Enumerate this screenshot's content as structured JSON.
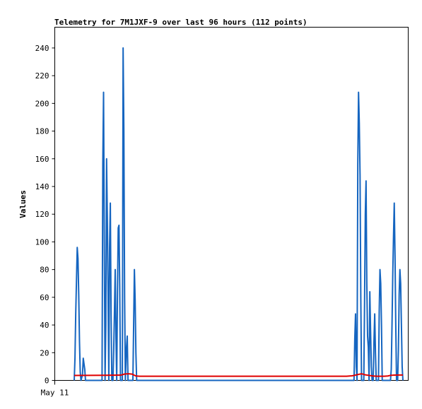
{
  "chart_data": {
    "type": "line",
    "title": "Telemetry for 7M1JXF-9 over last 96 hours (112 points)",
    "xlabel": "",
    "ylabel": "Values",
    "x_tick_labels": [
      {
        "x": 0,
        "label": "May 11"
      }
    ],
    "xlim": [
      0,
      96
    ],
    "ylim": [
      0,
      255
    ],
    "y_ticks": [
      0,
      20,
      40,
      60,
      80,
      100,
      120,
      140,
      160,
      180,
      200,
      220,
      240
    ],
    "grid": false,
    "legend": "none",
    "series": [
      {
        "color": "#1565c0",
        "points": [
          [
            9.6,
            0
          ],
          [
            9.8,
            16
          ],
          [
            10.0,
            48
          ],
          [
            10.2,
            72
          ],
          [
            10.4,
            96
          ],
          [
            10.6,
            88
          ],
          [
            10.8,
            62
          ],
          [
            11.0,
            28
          ],
          [
            11.2,
            6
          ],
          [
            11.4,
            0
          ],
          [
            11.8,
            4
          ],
          [
            12.0,
            16
          ],
          [
            12.2,
            12
          ],
          [
            12.4,
            8
          ],
          [
            12.6,
            0
          ],
          [
            17.0,
            0
          ],
          [
            17.2,
            156
          ],
          [
            17.4,
            208
          ],
          [
            17.6,
            100
          ],
          [
            17.8,
            0
          ],
          [
            18.0,
            40
          ],
          [
            18.2,
            160
          ],
          [
            18.4,
            118
          ],
          [
            18.6,
            64
          ],
          [
            18.8,
            0
          ],
          [
            19.0,
            96
          ],
          [
            19.2,
            128
          ],
          [
            19.4,
            48
          ],
          [
            19.6,
            0
          ],
          [
            19.9,
            0
          ],
          [
            20.1,
            22
          ],
          [
            20.3,
            50
          ],
          [
            20.5,
            80
          ],
          [
            20.7,
            30
          ],
          [
            20.9,
            0
          ],
          [
            21.1,
            64
          ],
          [
            21.3,
            110
          ],
          [
            21.5,
            112
          ],
          [
            21.7,
            68
          ],
          [
            21.9,
            0
          ],
          [
            22.4,
            0
          ],
          [
            22.6,
            240
          ],
          [
            22.8,
            180
          ],
          [
            23.0,
            60
          ],
          [
            23.2,
            0
          ],
          [
            23.5,
            24
          ],
          [
            23.7,
            32
          ],
          [
            23.9,
            0
          ],
          [
            25.2,
            0
          ],
          [
            25.4,
            40
          ],
          [
            25.6,
            80
          ],
          [
            25.8,
            58
          ],
          [
            26.0,
            20
          ],
          [
            26.2,
            0
          ],
          [
            84.0,
            0
          ],
          [
            84.2,
            30
          ],
          [
            84.4,
            48
          ],
          [
            84.6,
            10
          ],
          [
            84.8,
            0
          ],
          [
            85.0,
            156
          ],
          [
            85.2,
            208
          ],
          [
            85.4,
            186
          ],
          [
            85.6,
            148
          ],
          [
            85.8,
            60
          ],
          [
            86.0,
            0
          ],
          [
            86.6,
            0
          ],
          [
            86.8,
            56
          ],
          [
            87.0,
            120
          ],
          [
            87.2,
            144
          ],
          [
            87.4,
            70
          ],
          [
            87.6,
            32
          ],
          [
            87.8,
            24
          ],
          [
            88.0,
            0
          ],
          [
            88.2,
            64
          ],
          [
            88.4,
            36
          ],
          [
            88.6,
            10
          ],
          [
            88.8,
            0
          ],
          [
            89.1,
            0
          ],
          [
            89.3,
            28
          ],
          [
            89.5,
            48
          ],
          [
            89.7,
            20
          ],
          [
            89.9,
            0
          ],
          [
            90.5,
            0
          ],
          [
            90.7,
            50
          ],
          [
            90.9,
            80
          ],
          [
            91.1,
            70
          ],
          [
            91.3,
            40
          ],
          [
            91.5,
            0
          ],
          [
            93.7,
            0
          ],
          [
            93.9,
            8
          ],
          [
            94.1,
            40
          ],
          [
            94.3,
            76
          ],
          [
            94.5,
            104
          ],
          [
            94.7,
            128
          ],
          [
            94.9,
            90
          ],
          [
            95.1,
            40
          ],
          [
            95.3,
            0
          ],
          [
            95.6,
            0
          ],
          [
            95.8,
            22
          ],
          [
            96.0,
            62
          ],
          [
            96.2,
            80
          ],
          [
            96.4,
            70
          ],
          [
            96.6,
            40
          ],
          [
            96.8,
            10
          ],
          [
            97.0,
            0
          ]
        ]
      },
      {
        "color": "#e00000",
        "points": [
          [
            9.6,
            3.6
          ],
          [
            18.0,
            3.7
          ],
          [
            22.0,
            3.8
          ],
          [
            23.0,
            4.6
          ],
          [
            24.0,
            4.8
          ],
          [
            25.0,
            4.5
          ],
          [
            26.0,
            3.2
          ],
          [
            27.0,
            3.0
          ],
          [
            82.0,
            3.0
          ],
          [
            83.5,
            3.3
          ],
          [
            84.0,
            3.6
          ],
          [
            85.0,
            4.2
          ],
          [
            86.0,
            4.8
          ],
          [
            87.0,
            4.0
          ],
          [
            88.0,
            3.6
          ],
          [
            89.0,
            3.2
          ],
          [
            90.0,
            3.0
          ],
          [
            92.0,
            3.0
          ],
          [
            93.0,
            3.2
          ],
          [
            93.6,
            3.6
          ],
          [
            94.6,
            3.8
          ],
          [
            96.0,
            3.9
          ],
          [
            97.0,
            3.9
          ]
        ]
      }
    ]
  }
}
